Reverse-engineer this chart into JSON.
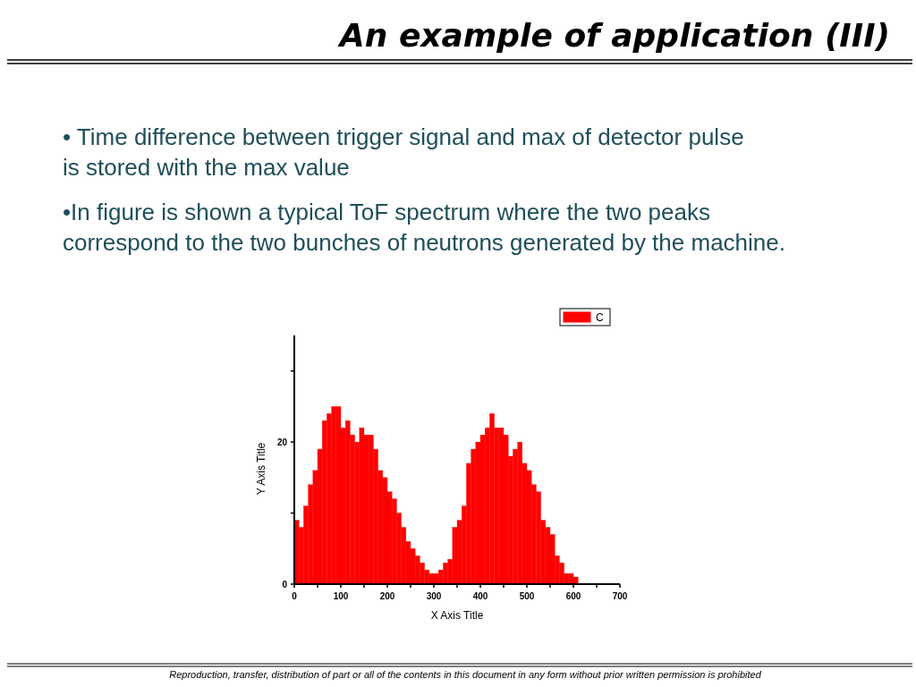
{
  "chart_data": {
    "type": "histogram",
    "title": "An example of application (III)",
    "annotations": [
      "• Time difference between trigger signal and max of detector pulse is stored with the max value",
      "•In figure is shown a typical ToF spectrum where the two peaks correspond to the two bunches of neutrons generated by the machine.",
      "Reproduction, transfer, distribution of part or all of the contents in this document in any form without prior written permission is prohibited"
    ],
    "xlabel": "X Axis Title",
    "ylabel": "Y Axis Title",
    "bins": [
      0,
      10,
      20,
      30,
      40,
      50,
      60,
      70,
      80,
      90,
      100,
      110,
      120,
      130,
      140,
      150,
      160,
      170,
      180,
      190,
      200,
      210,
      220,
      230,
      240,
      250,
      260,
      270,
      280,
      290,
      300,
      310,
      320,
      330,
      340,
      350,
      360,
      370,
      380,
      390,
      400,
      410,
      420,
      430,
      440,
      450,
      460,
      470,
      480,
      490,
      500,
      510,
      520,
      530,
      540,
      550,
      560,
      570,
      580,
      590,
      600,
      610
    ],
    "series": [
      {
        "name": "C",
        "color": "#ff0000",
        "values": [
          9,
          8,
          11,
          14,
          16,
          19,
          23,
          24,
          25,
          25,
          22,
          23,
          21,
          20,
          22,
          21,
          21,
          19,
          16,
          15,
          13,
          12,
          10,
          8,
          6,
          5,
          4,
          3,
          2,
          1.5,
          1.5,
          2,
          3,
          3.5,
          8,
          9,
          11,
          17,
          19,
          20,
          21,
          22,
          24,
          22,
          22,
          21,
          18,
          19,
          20,
          17,
          16,
          14,
          13,
          9,
          8,
          7,
          4,
          3,
          1.5,
          1.5,
          1
        ]
      }
    ],
    "xlim": [
      0,
      700
    ],
    "xticks": [
      0,
      {
        "value": 50,
        "label": null
      },
      100,
      {
        "value": 150,
        "label": null
      },
      200,
      {
        "value": 250,
        "label": null
      },
      300,
      {
        "value": 350,
        "label": null
      },
      400,
      {
        "value": 450,
        "label": null
      },
      500,
      {
        "value": 550,
        "label": null
      },
      600,
      {
        "value": 650,
        "label": null
      },
      700
    ],
    "ylim": [
      0,
      35
    ],
    "yticks": [
      0,
      {
        "value": 10,
        "label": null
      },
      20,
      {
        "value": 30,
        "label": null
      }
    ],
    "legend": "top right"
  }
}
